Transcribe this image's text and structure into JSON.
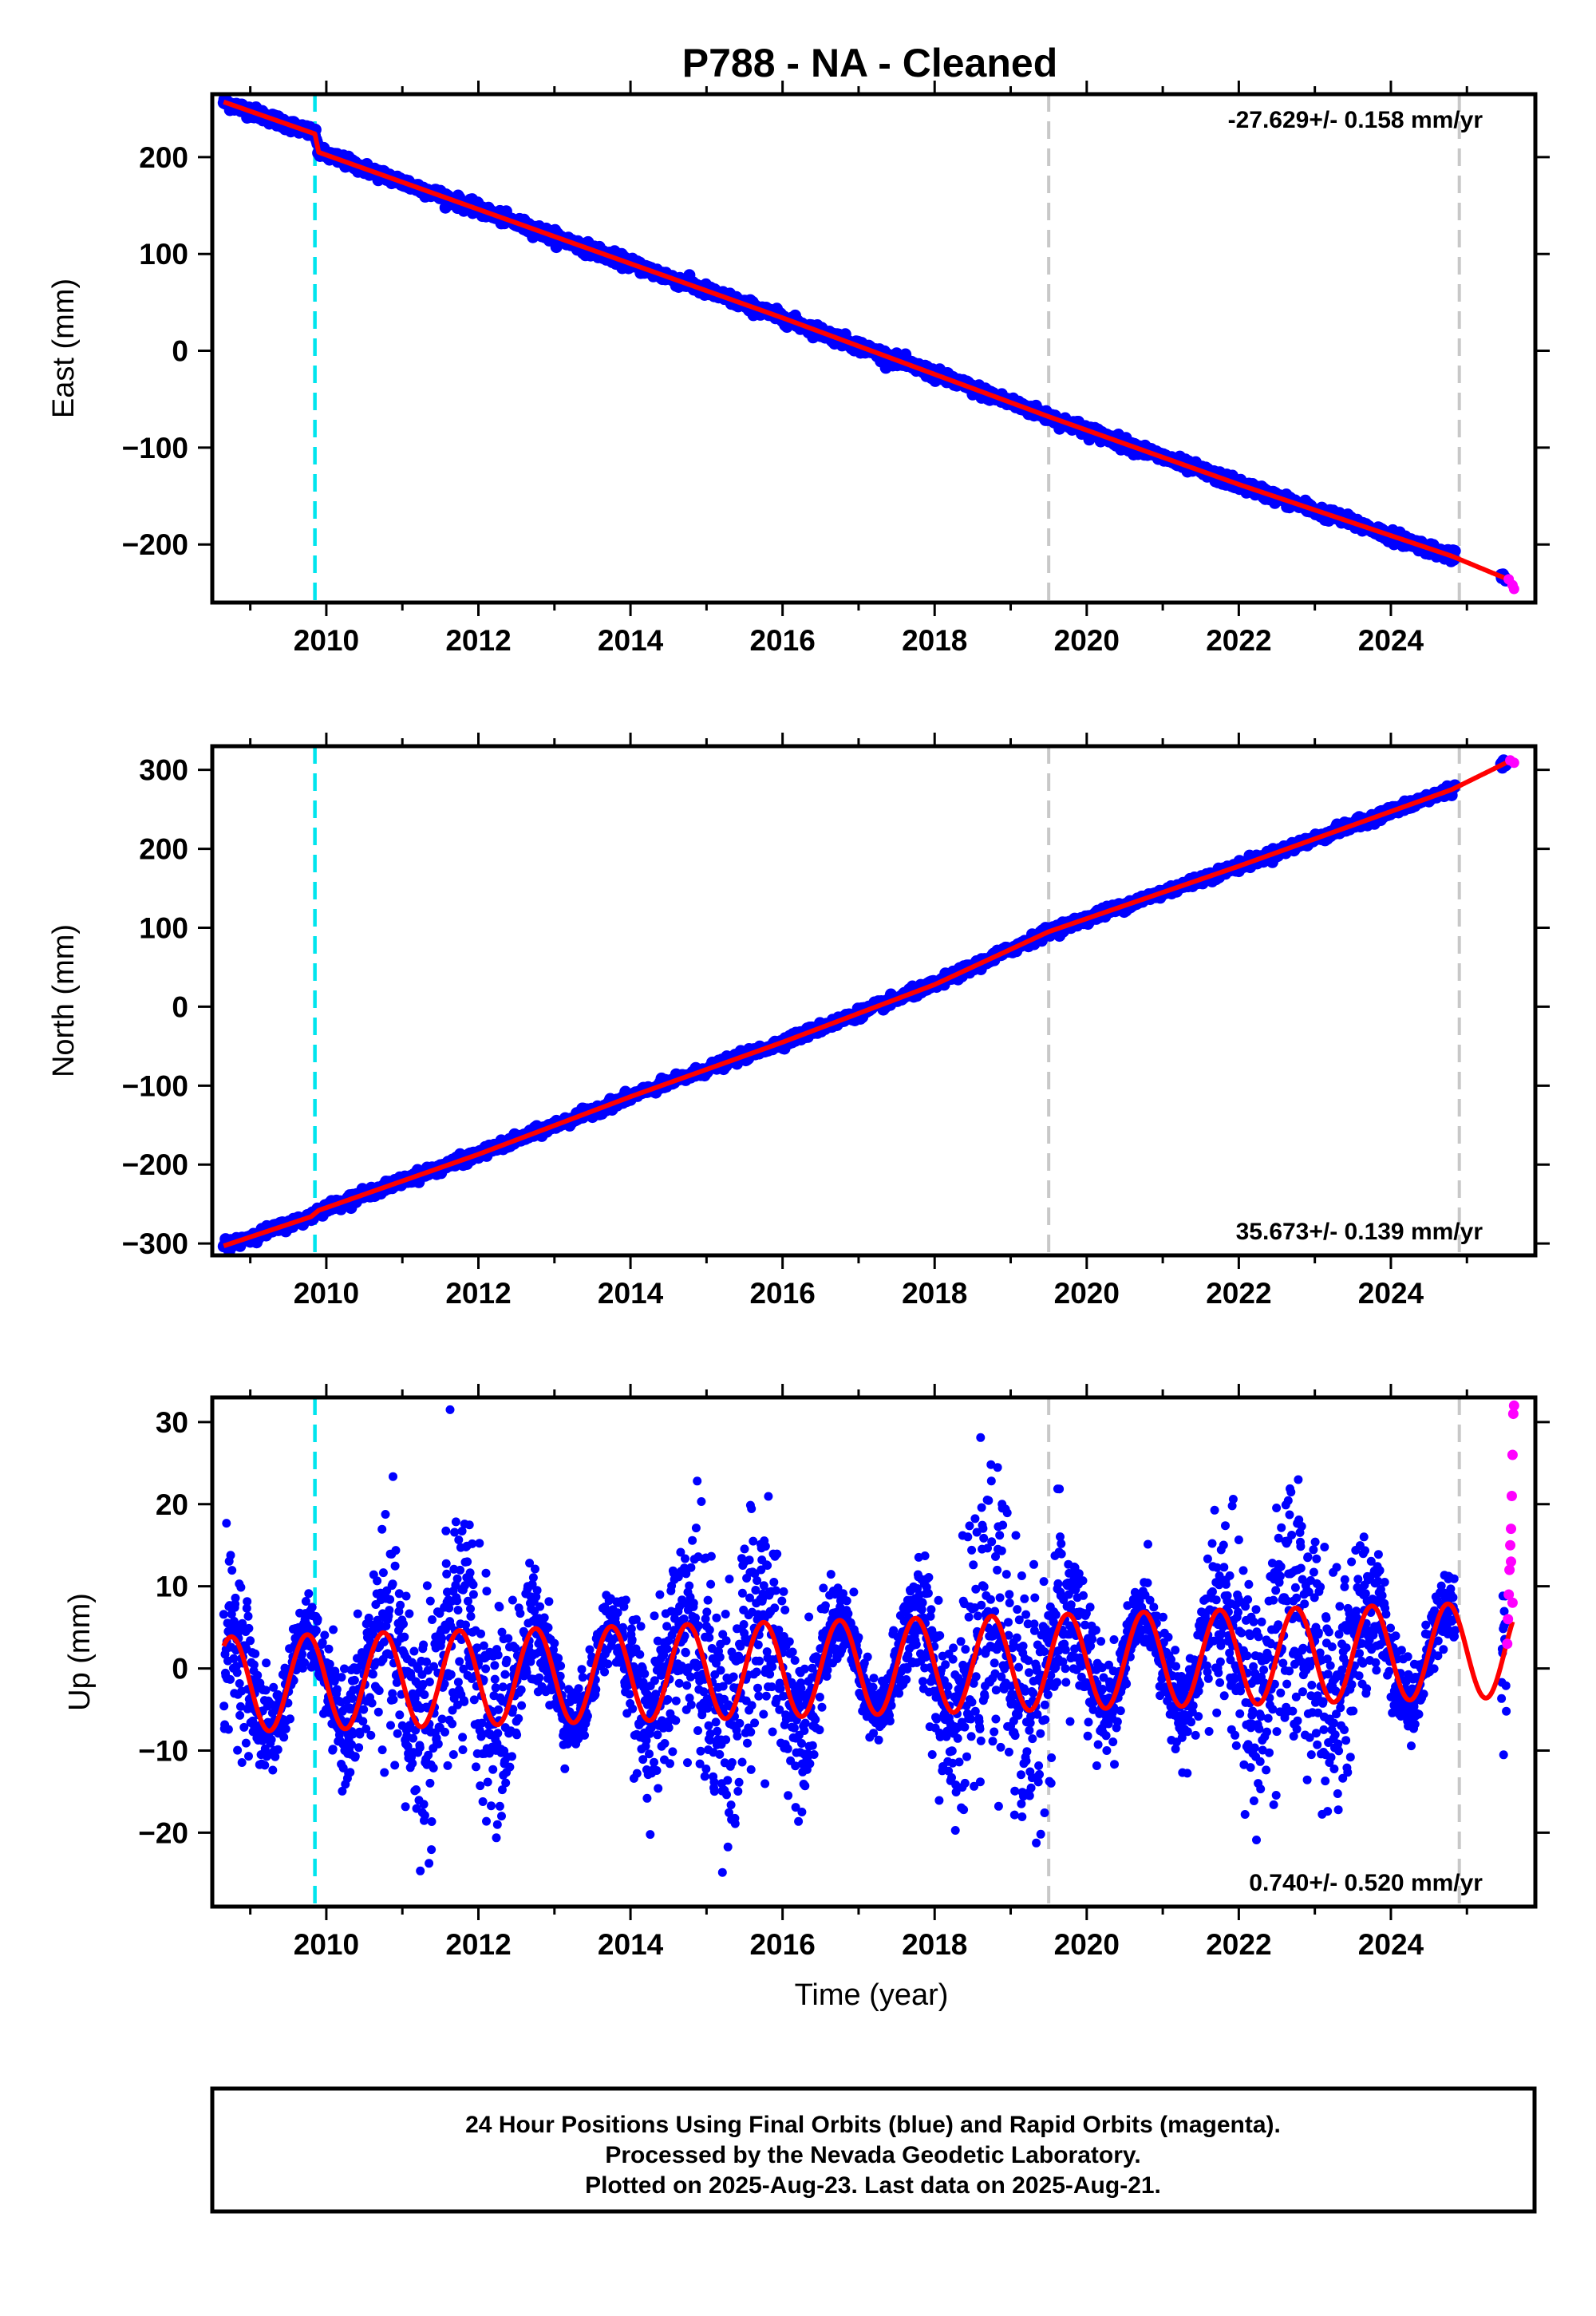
{
  "title": "P788  - NA - Cleaned",
  "colors": {
    "final_orbits": "#0000ff",
    "rapid_orbits": "#ff00ff",
    "model": "#ff0000",
    "antenna_change": "#00e5ee",
    "event": "#c8c8c8"
  },
  "xlabel": "Time (year)",
  "footer": {
    "line1": "24 Hour Positions Using Final Orbits (blue) and Rapid Orbits (magenta).",
    "line2": "Processed by the Nevada Geodetic Laboratory.",
    "line3": "Plotted on 2025-Aug-23. Last data on 2025-Aug-21."
  },
  "chart_data": [
    {
      "type": "scatter",
      "component": "east",
      "ylabel": "East (mm)",
      "rate_text": "-27.629+/- 0.158 mm/yr",
      "xlim": [
        2008.5,
        2025.9
      ],
      "ylim": [
        -260,
        265
      ],
      "xticks": [
        2010,
        2012,
        2014,
        2016,
        2018,
        2020,
        2022,
        2024
      ],
      "yticks": [
        -200,
        -100,
        0,
        100,
        200
      ],
      "yticklabels": [
        "−200",
        "−100",
        "0",
        "100",
        "200"
      ],
      "data_start": 2008.65,
      "data_end": 2025.6,
      "vlines": [
        {
          "x": 2009.85,
          "kind": "antenna_change"
        },
        {
          "x": 2019.5,
          "kind": "event"
        },
        {
          "x": 2024.9,
          "kind": "event"
        }
      ],
      "trend": [
        [
          2008.65,
          257
        ],
        [
          2009.85,
          224
        ],
        [
          2009.9,
          205
        ],
        [
          2013.0,
          118
        ],
        [
          2016.0,
          34
        ],
        [
          2019.5,
          -68
        ],
        [
          2022.0,
          -138
        ],
        [
          2024.8,
          -212
        ],
        [
          2025.6,
          -238
        ]
      ],
      "scatter_noise_mm": 3,
      "rapid_points": [
        [
          2025.55,
          -236
        ],
        [
          2025.6,
          -242
        ],
        [
          2025.62,
          -246
        ]
      ]
    },
    {
      "type": "scatter",
      "component": "north",
      "ylabel": "North (mm)",
      "rate_text": "35.673+/- 0.139 mm/yr",
      "xlim": [
        2008.5,
        2025.9
      ],
      "ylim": [
        -315,
        330
      ],
      "xticks": [
        2010,
        2012,
        2014,
        2016,
        2018,
        2020,
        2022,
        2024
      ],
      "yticks": [
        -300,
        -200,
        -100,
        0,
        100,
        200,
        300
      ],
      "yticklabels": [
        "−300",
        "−200",
        "−100",
        "0",
        "100",
        "200",
        "300"
      ],
      "data_start": 2008.65,
      "data_end": 2025.6,
      "vlines": [
        {
          "x": 2009.85,
          "kind": "antenna_change"
        },
        {
          "x": 2019.5,
          "kind": "event"
        },
        {
          "x": 2024.9,
          "kind": "event"
        }
      ],
      "trend": [
        [
          2008.65,
          -303
        ],
        [
          2009.8,
          -266
        ],
        [
          2009.9,
          -258
        ],
        [
          2012.0,
          -187
        ],
        [
          2014.0,
          -114
        ],
        [
          2016.0,
          -45
        ],
        [
          2018.0,
          28
        ],
        [
          2019.5,
          95
        ],
        [
          2022.0,
          178
        ],
        [
          2024.8,
          275
        ],
        [
          2025.6,
          313
        ]
      ],
      "scatter_noise_mm": 3,
      "rapid_points": [
        [
          2025.57,
          312
        ],
        [
          2025.62,
          309
        ]
      ]
    },
    {
      "type": "scatter",
      "component": "up",
      "ylabel": "Up (mm)",
      "rate_text": "0.740+/- 0.520 mm/yr",
      "xlim": [
        2008.5,
        2025.9
      ],
      "ylim": [
        -29,
        33
      ],
      "xticks": [
        2010,
        2012,
        2014,
        2016,
        2018,
        2020,
        2022,
        2024
      ],
      "yticks": [
        -20,
        -10,
        0,
        10,
        20,
        30
      ],
      "yticklabels": [
        "−20",
        "−10",
        "0",
        "10",
        "20",
        "30"
      ],
      "data_start": 2008.65,
      "data_end": 2025.6,
      "vlines": [
        {
          "x": 2009.85,
          "kind": "antenna_change"
        },
        {
          "x": 2019.5,
          "kind": "event"
        },
        {
          "x": 2024.9,
          "kind": "event"
        }
      ],
      "seasonal": {
        "offset": -2.0,
        "rate": 0.25,
        "amplitude": 5.8,
        "peak_phase": 0.75
      },
      "scatter_noise_mm": 5,
      "rapid_points": [
        [
          2025.53,
          3
        ],
        [
          2025.54,
          6
        ],
        [
          2025.55,
          9
        ],
        [
          2025.56,
          12
        ],
        [
          2025.57,
          15
        ],
        [
          2025.58,
          17
        ],
        [
          2025.59,
          21
        ],
        [
          2025.6,
          26
        ],
        [
          2025.61,
          31
        ],
        [
          2025.62,
          32
        ],
        [
          2025.58,
          13
        ],
        [
          2025.6,
          8
        ]
      ]
    }
  ]
}
